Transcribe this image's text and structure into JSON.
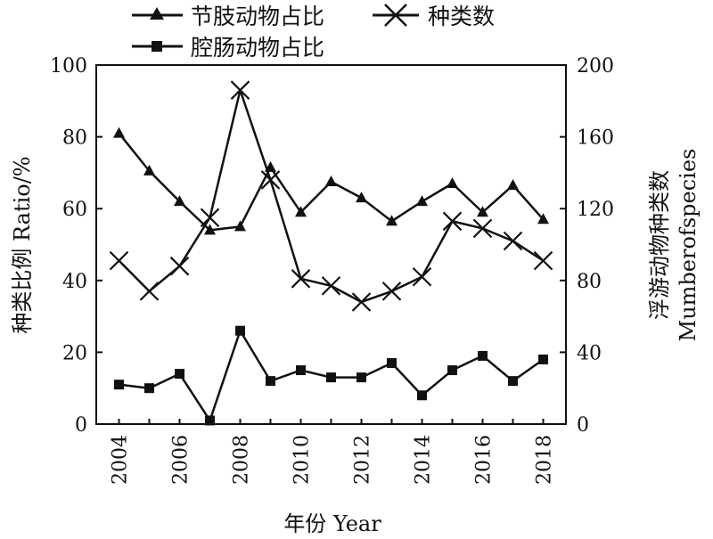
{
  "chart_data": {
    "type": "line",
    "x": [
      2004,
      2005,
      2006,
      2007,
      2008,
      2009,
      2010,
      2011,
      2012,
      2013,
      2014,
      2015,
      2016,
      2017,
      2018
    ],
    "x_ticks": [
      "2004",
      "2006",
      "2008",
      "2010",
      "2012",
      "2014",
      "2016",
      "2018"
    ],
    "y_ticks": [
      "0",
      "20",
      "40",
      "60",
      "80",
      "100"
    ],
    "y2_ticks": [
      "0",
      "40",
      "80",
      "120",
      "160",
      "200"
    ],
    "xlabel": "年份 Year",
    "ylabel": "种类比例 Ratio/%",
    "y2label_cn": "浮游动物种类数",
    "y2label_en": "Mumberofspecies",
    "ylim": [
      0,
      100
    ],
    "y2lim": [
      0,
      200
    ],
    "series": [
      {
        "name": "节肢动物占比",
        "axis": "left",
        "marker": "triangle",
        "values": [
          81,
          70.5,
          62,
          54,
          55,
          71.5,
          59,
          67.5,
          63,
          56.5,
          62,
          67,
          59,
          66.5,
          57
        ]
      },
      {
        "name": "腔肠动物占比",
        "axis": "left",
        "marker": "square",
        "values": [
          11,
          10,
          14,
          1,
          26,
          12,
          15,
          13,
          13,
          17,
          8,
          15,
          19,
          12,
          18
        ]
      },
      {
        "name": "种类数",
        "axis": "right",
        "marker": "x",
        "values": [
          91,
          74,
          88,
          115,
          186,
          136,
          81,
          77,
          68,
          74,
          82,
          113,
          109,
          102,
          91
        ]
      }
    ],
    "grid": false,
    "legend": "top"
  }
}
